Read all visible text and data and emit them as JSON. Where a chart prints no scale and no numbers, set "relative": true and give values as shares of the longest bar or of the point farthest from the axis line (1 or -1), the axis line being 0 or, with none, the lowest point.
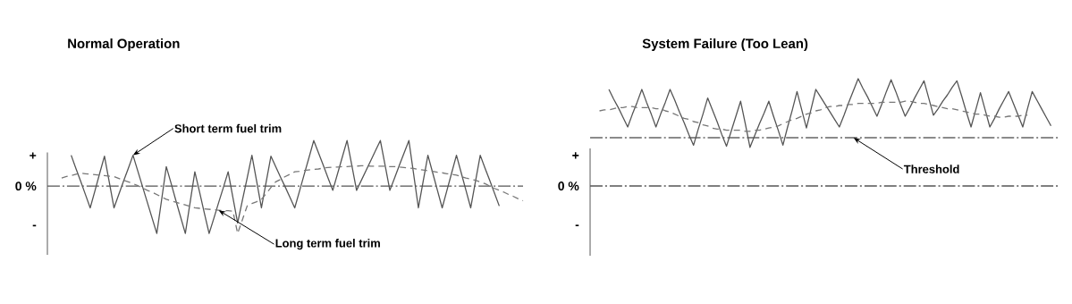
{
  "chart_data": [
    {
      "type": "line",
      "title": "Normal Operation",
      "relative": true,
      "categories": [
        null,
        null,
        null,
        null,
        null,
        null,
        null,
        null,
        null,
        null,
        null,
        null,
        null,
        null,
        null,
        null,
        null,
        null,
        null,
        null,
        null,
        null,
        null,
        null,
        null,
        null,
        null,
        null,
        null,
        null,
        null,
        null,
        null,
        null,
        null,
        null,
        null,
        null,
        null,
        null,
        null,
        null,
        null,
        null,
        null,
        null,
        null,
        null,
        null,
        null,
        null,
        null,
        null,
        null,
        null,
        null,
        null,
        null,
        null,
        null,
        null,
        null,
        null,
        null,
        null,
        null,
        null,
        null,
        null,
        null,
        null,
        null,
        null,
        null,
        null,
        null,
        null,
        null,
        null,
        null,
        null,
        null,
        null,
        null,
        null,
        null,
        null,
        null,
        null,
        null,
        null,
        null,
        null,
        null,
        null,
        null,
        null,
        null,
        null,
        null,
        null
      ],
      "series": [
        {
          "color": "#555555",
          "line_style": "solid",
          "values": [
            null,
            null,
            null,
            null,
            null,
            0.65,
            0.37,
            0.1,
            -0.18,
            -0.46,
            -0.1,
            0.27,
            0.63,
            0.09,
            -0.46,
            -0.18,
            0.1,
            0.37,
            0.65,
            0.32,
            -0.01,
            -0.34,
            -0.67,
            -1.0,
            -0.3,
            0.41,
            0.06,
            -0.3,
            -0.65,
            -1.0,
            -0.35,
            0.3,
            -0.13,
            -0.57,
            -1.0,
            -0.68,
            -0.35,
            -0.03,
            0.3,
            -0.24,
            -0.78,
            -0.3,
            0.17,
            0.65,
            0.1,
            -0.46,
            0.09,
            0.63,
            0.41,
            0.19,
            -0.02,
            -0.24,
            -0.46,
            -0.11,
            0.25,
            0.6,
            0.96,
            0.7,
            0.44,
            0.17,
            -0.09,
            0.26,
            0.61,
            0.96,
            0.44,
            -0.09,
            0.12,
            0.33,
            0.54,
            0.75,
            0.96,
            0.44,
            -0.09,
            0.17,
            0.44,
            0.7,
            0.96,
            0.25,
            -0.46,
            0.1,
            0.65,
            0.28,
            -0.09,
            -0.46,
            -0.09,
            0.28,
            0.65,
            0.28,
            -0.09,
            -0.46,
            0.1,
            0.65,
            0.38,
            0.12,
            -0.15,
            -0.42,
            null,
            null,
            null,
            null,
            null
          ]
        },
        {
          "color": "#777777",
          "line_style": "dashed",
          "values": [
            null,
            null,
            null,
            0.17,
            0.2,
            0.22,
            0.25,
            0.27,
            0.26,
            0.25,
            0.24,
            0.23,
            0.22,
            0.21,
            0.2,
            0.16,
            0.12,
            0.09,
            0.05,
            0.01,
            -0.04,
            -0.09,
            -0.13,
            -0.18,
            -0.23,
            -0.28,
            -0.31,
            -0.34,
            -0.37,
            -0.4,
            -0.43,
            -0.46,
            -0.47,
            -0.48,
            -0.49,
            -0.5,
            -0.51,
            -0.52,
            -0.52,
            -0.53,
            -1.0,
            -0.71,
            -0.42,
            -0.37,
            -0.33,
            -0.28,
            -0.16,
            -0.03,
            0.09,
            0.14,
            0.2,
            0.25,
            0.3,
            0.31,
            0.33,
            0.34,
            0.35,
            0.36,
            0.38,
            0.39,
            0.4,
            0.4,
            0.41,
            0.41,
            0.42,
            0.42,
            0.43,
            0.43,
            0.42,
            0.42,
            0.42,
            0.42,
            0.41,
            0.41,
            0.4,
            0.39,
            0.38,
            0.37,
            0.35,
            0.34,
            0.32,
            0.31,
            0.29,
            0.28,
            0.26,
            0.25,
            0.23,
            0.2,
            0.17,
            0.15,
            0.12,
            0.09,
            0.05,
            0.0,
            -0.05,
            -0.09,
            -0.13,
            -0.18,
            -0.22,
            -0.27,
            -0.31
          ]
        }
      ],
      "ref_lines": [
        {
          "axis": "y",
          "value": 0,
          "color": "#555555",
          "line_style": "dashdot"
        }
      ],
      "annotations": [
        "+",
        "0 %",
        "-",
        "Short term fuel trim",
        "Long term fuel trim"
      ]
    },
    {
      "type": "line",
      "title": "System Failure (Too Lean)",
      "relative": true,
      "categories": [
        null,
        null,
        null,
        null,
        null,
        null,
        null,
        null,
        null,
        null,
        null,
        null,
        null,
        null,
        null,
        null,
        null,
        null,
        null,
        null,
        null,
        null,
        null,
        null,
        null,
        null,
        null,
        null,
        null,
        null,
        null,
        null,
        null,
        null,
        null,
        null,
        null,
        null,
        null,
        null,
        null,
        null,
        null,
        null,
        null,
        null,
        null,
        null,
        null,
        null,
        null,
        null,
        null,
        null,
        null,
        null,
        null,
        null,
        null,
        null,
        null,
        null,
        null,
        null,
        null,
        null,
        null,
        null,
        null,
        null,
        null,
        null,
        null,
        null,
        null,
        null,
        null,
        null,
        null,
        null,
        null,
        null,
        null,
        null,
        null,
        null,
        null,
        null,
        null,
        null,
        null,
        null,
        null,
        null,
        null,
        null,
        null,
        null,
        null,
        null,
        null
      ],
      "series": [
        {
          "color": "#555555",
          "line_style": "solid",
          "values": [
            null,
            null,
            null,
            null,
            0.9,
            0.81,
            0.73,
            0.64,
            0.55,
            0.67,
            0.78,
            0.9,
            0.78,
            0.67,
            0.55,
            0.67,
            0.78,
            0.9,
            0.8,
            0.69,
            0.59,
            0.48,
            0.38,
            0.53,
            0.67,
            0.82,
            0.71,
            0.6,
            0.48,
            0.37,
            0.51,
            0.65,
            0.79,
            0.58,
            0.36,
            0.47,
            0.58,
            0.68,
            0.79,
            0.65,
            0.52,
            0.38,
            0.55,
            0.71,
            0.88,
            0.71,
            0.54,
            0.72,
            0.9,
            0.83,
            0.76,
            0.69,
            0.62,
            0.55,
            0.66,
            0.78,
            0.89,
            1.0,
            0.91,
            0.83,
            0.74,
            0.65,
            0.76,
            0.88,
            0.99,
            0.88,
            0.76,
            0.65,
            0.73,
            0.82,
            0.9,
            0.98,
            0.82,
            0.66,
            0.72,
            0.79,
            0.85,
            0.92,
            0.98,
            0.84,
            0.69,
            0.55,
            0.71,
            0.87,
            0.71,
            0.55,
            0.63,
            0.72,
            0.8,
            0.88,
            0.77,
            0.66,
            0.55,
            0.72,
            0.88,
            0.8,
            0.72,
            0.64,
            0.56,
            null,
            null
          ]
        },
        {
          "color": "#777777",
          "line_style": "dashed",
          "values": [
            null,
            null,
            0.7,
            0.71,
            0.71,
            0.72,
            0.73,
            0.73,
            0.74,
            0.74,
            0.73,
            0.73,
            0.73,
            0.73,
            0.72,
            0.72,
            0.7,
            0.69,
            0.67,
            0.65,
            0.63,
            0.62,
            0.6,
            0.59,
            0.57,
            0.56,
            0.54,
            0.53,
            0.53,
            0.52,
            0.52,
            0.52,
            0.52,
            0.51,
            0.51,
            0.52,
            0.52,
            0.53,
            0.54,
            0.55,
            0.56,
            0.58,
            0.6,
            0.62,
            0.63,
            0.65,
            0.67,
            0.68,
            0.7,
            0.71,
            0.73,
            0.74,
            0.74,
            0.75,
            0.75,
            0.76,
            0.76,
            0.77,
            0.77,
            0.77,
            0.77,
            0.77,
            0.78,
            0.78,
            0.78,
            0.78,
            0.78,
            0.79,
            0.79,
            0.78,
            0.77,
            0.77,
            0.76,
            0.75,
            0.74,
            0.73,
            0.72,
            0.72,
            0.71,
            0.7,
            0.69,
            0.68,
            0.67,
            0.67,
            0.66,
            0.65,
            0.65,
            0.64,
            0.64,
            0.65,
            0.65,
            0.65,
            0.66,
            0.66,
            null,
            null,
            null,
            null,
            null,
            null,
            null
          ]
        }
      ],
      "ref_lines": [
        {
          "axis": "y",
          "value": 0.45,
          "label": "Threshold",
          "color": "#666666",
          "line_style": "dashdot"
        },
        {
          "axis": "y",
          "value": 0,
          "color": "#555555",
          "line_style": "dashdot"
        }
      ],
      "annotations": [
        "+",
        "0 %",
        "-"
      ]
    }
  ]
}
